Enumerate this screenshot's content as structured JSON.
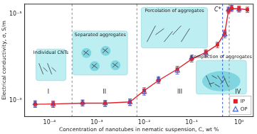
{
  "chart_data": {
    "type": "scatter",
    "x_label": "Concentration of nanotubes in nematic suspension, C, wt %",
    "y_label": "Electrical conductivity, σ, S/m",
    "log": true,
    "grid": false,
    "legend": "lower right",
    "xlim": [
      3e-05,
      2
    ],
    "ylim": [
      6.5e-07,
      1.3e-05
    ],
    "xticks": [
      {
        "value": 0.0001,
        "label": "10⁻⁴"
      },
      {
        "value": 0.001,
        "label": "10⁻³"
      },
      {
        "value": 0.01,
        "label": "10⁻²"
      },
      {
        "value": 0.1,
        "label": "10⁻¹"
      },
      {
        "value": 1,
        "label": "10⁰"
      }
    ],
    "yticks": [
      {
        "value": 1e-06,
        "label": "10⁻⁶"
      },
      {
        "value": 1e-05,
        "label": "10⁻⁵"
      }
    ],
    "series": [
      {
        "name": "IP",
        "color": "#e0202a",
        "marker": "square",
        "line_style": "solid",
        "x": [
          5e-05,
          0.00012,
          0.0005,
          0.0015,
          0.005,
          0.01,
          0.02,
          0.05,
          0.1,
          0.2,
          0.35,
          0.5,
          0.6,
          0.7,
          1,
          1.5
        ],
        "values": [
          9e-07,
          9.1e-07,
          9.3e-07,
          9.3e-07,
          9.6e-07,
          1.3e-06,
          1.7e-06,
          2.3e-06,
          3e-06,
          3.6e-06,
          4.4e-06,
          6e-06,
          1.1e-05,
          1.15e-05,
          1.15e-05,
          1.12e-05
        ],
        "errors": [
          7e-08,
          7e-08,
          7e-08,
          7e-08,
          8e-08,
          1e-07,
          1.3e-07,
          1.8e-07,
          2.2e-07,
          2.6e-07,
          3.2e-07,
          5e-07,
          8e-07,
          8e-07,
          8e-07,
          8e-07
        ]
      },
      {
        "name": "OP",
        "color": "#4060d0",
        "marker": "open_triangle",
        "line_style": "none",
        "x": [
          5e-05,
          0.00012,
          0.0005,
          0.0015,
          0.005,
          0.01,
          0.02,
          0.05,
          0.1,
          0.2,
          0.5,
          0.6,
          0.7,
          1
        ],
        "values": [
          9.2e-07,
          9e-07,
          9.4e-07,
          9.2e-07,
          9.5e-07,
          1.25e-06,
          1.75e-06,
          2.2e-06,
          3.1e-06,
          3.5e-06,
          5.8e-06,
          1.12e-05,
          1.18e-05,
          1.13e-05
        ],
        "errors": [
          7e-08,
          7e-08,
          7e-08,
          7e-08,
          8e-08,
          1e-07,
          1.3e-07,
          1.8e-07,
          2.2e-07,
          2.6e-07,
          5e-07,
          8e-07,
          8e-07,
          8e-07
        ]
      }
    ],
    "dividers": [
      {
        "x": 0.0003,
        "color": "#888888"
      },
      {
        "x": 0.007,
        "color": "#888888"
      },
      {
        "x": 0.45,
        "color": "#3355cc",
        "label": "C*"
      },
      {
        "x": 0.62,
        "color": "#888888"
      }
    ],
    "regions": [
      {
        "label": "I",
        "start": 3e-05,
        "end": 0.0003
      },
      {
        "label": "II",
        "start": 0.0003,
        "end": 0.007
      },
      {
        "label": "III",
        "start": 0.007,
        "end": 0.45
      },
      {
        "label": "IV",
        "start": 0.45,
        "end": 2
      }
    ],
    "annotations": [
      "Individual CNTs",
      "Separated aggregates",
      "Percolation of aggregates",
      "Compaction of aggregates"
    ]
  }
}
